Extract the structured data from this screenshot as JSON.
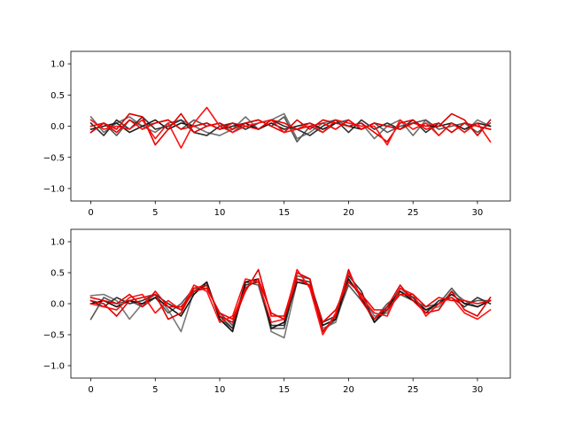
{
  "chart_data": [
    {
      "type": "line",
      "title": "",
      "xlabel": "",
      "ylabel": "",
      "xlim": [
        -1.55,
        32.55
      ],
      "ylim": [
        -1.2,
        1.2
      ],
      "xticks": [
        0,
        5,
        10,
        15,
        20,
        25,
        30
      ],
      "xtick_labels": [
        "0",
        "5",
        "10",
        "15",
        "20",
        "25",
        "30"
      ],
      "yticks": [
        1.0,
        0.5,
        0.0,
        -0.5,
        -1.0
      ],
      "ytick_labels": [
        "1.0",
        "0.5",
        "0.0",
        "−0.5",
        "−1.0"
      ],
      "grid": false,
      "x": [
        0,
        1,
        2,
        3,
        4,
        5,
        6,
        7,
        8,
        9,
        10,
        11,
        12,
        13,
        14,
        15,
        16,
        17,
        18,
        19,
        20,
        21,
        22,
        23,
        24,
        25,
        26,
        27,
        28,
        29,
        30,
        31
      ],
      "series": [
        {
          "color": "#707070",
          "values": [
            0.15,
            -0.1,
            0.05,
            0.15,
            0.0,
            -0.1,
            0.05,
            0.1,
            0.0,
            -0.1,
            -0.15,
            -0.05,
            0.15,
            -0.05,
            0.1,
            0.2,
            -0.2,
            -0.1,
            0.05,
            0.1,
            0.0,
            0.05,
            -0.2,
            0.0,
            0.1,
            -0.15,
            0.1,
            -0.15,
            0.05,
            -0.1,
            0.1,
            0.0
          ]
        },
        {
          "color": "#555555",
          "values": [
            -0.1,
            0.05,
            -0.15,
            0.1,
            0.0,
            0.05,
            0.1,
            -0.05,
            0.1,
            0.0,
            0.05,
            -0.1,
            0.05,
            0.1,
            0.0,
            0.15,
            -0.25,
            0.0,
            -0.1,
            0.05,
            0.1,
            -0.05,
            0.05,
            -0.1,
            0.0,
            0.05,
            0.1,
            -0.05,
            0.0,
            0.05,
            -0.1,
            0.05
          ]
        },
        {
          "color": "#303030",
          "values": [
            0.05,
            -0.15,
            0.1,
            -0.05,
            0.15,
            -0.05,
            0.0,
            0.1,
            -0.1,
            -0.15,
            0.0,
            0.05,
            -0.05,
            0.05,
            0.1,
            0.0,
            -0.05,
            -0.15,
            0.0,
            0.1,
            -0.1,
            0.1,
            -0.05,
            0.05,
            -0.05,
            0.1,
            -0.1,
            0.05,
            -0.1,
            0.05,
            0.0,
            -0.05
          ]
        },
        {
          "color": "#1a1a1a",
          "values": [
            -0.05,
            0.0,
            0.05,
            -0.1,
            0.0,
            0.1,
            -0.05,
            0.05,
            0.0,
            0.05,
            -0.05,
            0.0,
            0.05,
            -0.05,
            0.05,
            -0.05,
            0.0,
            0.05,
            -0.05,
            0.05,
            0.0,
            -0.05,
            0.05,
            0.0,
            -0.05,
            0.05,
            0.0,
            0.0,
            0.05,
            -0.05,
            0.05,
            0.0
          ]
        },
        {
          "color": "#e00000",
          "values": [
            -0.1,
            0.05,
            -0.05,
            0.2,
            0.15,
            -0.3,
            -0.05,
            0.2,
            -0.1,
            0.0,
            0.05,
            -0.05,
            0.05,
            0.1,
            0.0,
            -0.1,
            0.1,
            -0.05,
            0.1,
            0.05,
            0.0,
            0.05,
            -0.1,
            -0.25,
            0.05,
            0.1,
            -0.05,
            0.0,
            0.2,
            0.1,
            -0.15,
            0.1
          ]
        },
        {
          "color": "#ff1010",
          "values": [
            0.1,
            -0.05,
            0.0,
            -0.05,
            0.1,
            -0.2,
            0.05,
            -0.35,
            0.05,
            0.3,
            0.0,
            -0.1,
            0.0,
            0.05,
            0.1,
            -0.1,
            -0.05,
            0.05,
            -0.1,
            0.1,
            0.05,
            0.0,
            0.0,
            -0.3,
            0.1,
            -0.05,
            0.05,
            -0.15,
            0.05,
            -0.1,
            0.05,
            -0.25
          ]
        },
        {
          "color": "#ee0000",
          "values": [
            0.0,
            0.05,
            -0.1,
            0.1,
            -0.05,
            0.05,
            0.1,
            -0.05,
            0.0,
            0.05,
            -0.05,
            0.05,
            0.0,
            -0.05,
            0.1,
            0.05,
            -0.05,
            0.0,
            0.05,
            -0.05,
            0.1,
            -0.05,
            0.05,
            0.0,
            -0.05,
            0.05,
            0.0,
            0.05,
            -0.1,
            0.05,
            0.0,
            -0.05
          ]
        }
      ]
    },
    {
      "type": "line",
      "title": "",
      "xlabel": "",
      "ylabel": "",
      "xlim": [
        -1.55,
        32.55
      ],
      "ylim": [
        -1.2,
        1.2
      ],
      "xticks": [
        0,
        5,
        10,
        15,
        20,
        25,
        30
      ],
      "xtick_labels": [
        "0",
        "5",
        "10",
        "15",
        "20",
        "25",
        "30"
      ],
      "yticks": [
        1.0,
        0.5,
        0.0,
        -0.5,
        -1.0
      ],
      "ytick_labels": [
        "1.0",
        "0.5",
        "0.0",
        "−0.5",
        "−1.0"
      ],
      "grid": false,
      "x": [
        0,
        1,
        2,
        3,
        4,
        5,
        6,
        7,
        8,
        9,
        10,
        11,
        12,
        13,
        14,
        15,
        16,
        17,
        18,
        19,
        20,
        21,
        22,
        23,
        24,
        25,
        26,
        27,
        28,
        29,
        30,
        31
      ],
      "series": [
        {
          "color": "#777777",
          "values": [
            0.13,
            0.15,
            0.05,
            -0.25,
            0.0,
            0.15,
            -0.1,
            -0.45,
            0.2,
            0.35,
            -0.25,
            -0.4,
            0.25,
            0.4,
            -0.45,
            -0.55,
            0.35,
            0.3,
            -0.4,
            -0.3,
            0.35,
            0.15,
            -0.2,
            -0.15,
            0.2,
            0.1,
            -0.1,
            -0.05,
            0.2,
            0.05,
            -0.05,
            0.05
          ]
        },
        {
          "color": "#555555",
          "values": [
            -0.25,
            0.1,
            0.0,
            0.05,
            -0.05,
            0.1,
            -0.15,
            0.0,
            0.25,
            0.25,
            -0.15,
            -0.35,
            0.35,
            0.3,
            -0.4,
            -0.4,
            0.45,
            0.4,
            -0.45,
            -0.25,
            0.3,
            0.05,
            -0.25,
            0.0,
            0.15,
            0.05,
            -0.05,
            0.0,
            0.25,
            0.0,
            0.05,
            0.05
          ]
        },
        {
          "color": "#333333",
          "values": [
            0.05,
            -0.05,
            0.1,
            0.0,
            0.05,
            0.15,
            0.0,
            -0.1,
            0.2,
            0.3,
            -0.2,
            -0.4,
            0.3,
            0.35,
            -0.35,
            -0.35,
            0.4,
            0.35,
            -0.3,
            -0.2,
            0.45,
            0.2,
            -0.3,
            -0.1,
            0.25,
            0.1,
            -0.15,
            0.05,
            0.1,
            -0.05,
            0.1,
            0.0
          ]
        },
        {
          "color": "#111111",
          "values": [
            0.0,
            0.05,
            -0.05,
            0.05,
            0.0,
            0.1,
            -0.05,
            -0.2,
            0.15,
            0.35,
            -0.25,
            -0.45,
            0.35,
            0.4,
            -0.4,
            -0.3,
            0.35,
            0.3,
            -0.35,
            -0.25,
            0.4,
            0.1,
            -0.3,
            -0.05,
            0.2,
            0.05,
            -0.1,
            0.0,
            0.15,
            0.0,
            -0.05,
            0.05
          ]
        },
        {
          "color": "#e00000",
          "values": [
            0.05,
            0.0,
            -0.2,
            0.05,
            0.1,
            0.15,
            -0.25,
            -0.15,
            0.25,
            0.3,
            -0.2,
            -0.3,
            0.2,
            0.55,
            -0.2,
            -0.2,
            0.5,
            0.4,
            -0.45,
            -0.2,
            0.55,
            0.05,
            -0.25,
            -0.05,
            0.3,
            0.05,
            -0.15,
            -0.1,
            0.2,
            -0.1,
            -0.2,
            0.1
          ]
        },
        {
          "color": "#ff1010",
          "values": [
            0.0,
            -0.05,
            -0.1,
            0.1,
            0.15,
            -0.15,
            0.05,
            -0.1,
            0.3,
            0.2,
            -0.3,
            -0.2,
            0.4,
            0.35,
            -0.3,
            -0.25,
            0.55,
            0.25,
            -0.5,
            -0.15,
            0.5,
            0.1,
            -0.15,
            -0.2,
            0.25,
            0.15,
            -0.2,
            0.0,
            0.1,
            -0.15,
            -0.25,
            -0.1
          ]
        },
        {
          "color": "#ee0000",
          "values": [
            0.1,
            0.05,
            0.0,
            0.15,
            -0.05,
            0.2,
            -0.05,
            -0.05,
            0.2,
            0.25,
            -0.15,
            -0.25,
            0.25,
            0.4,
            -0.15,
            -0.25,
            0.4,
            0.3,
            -0.3,
            -0.1,
            0.35,
            0.15,
            -0.1,
            -0.1,
            0.15,
            0.15,
            -0.05,
            0.1,
            0.05,
            0.05,
            0.0,
            0.05
          ]
        }
      ]
    }
  ]
}
